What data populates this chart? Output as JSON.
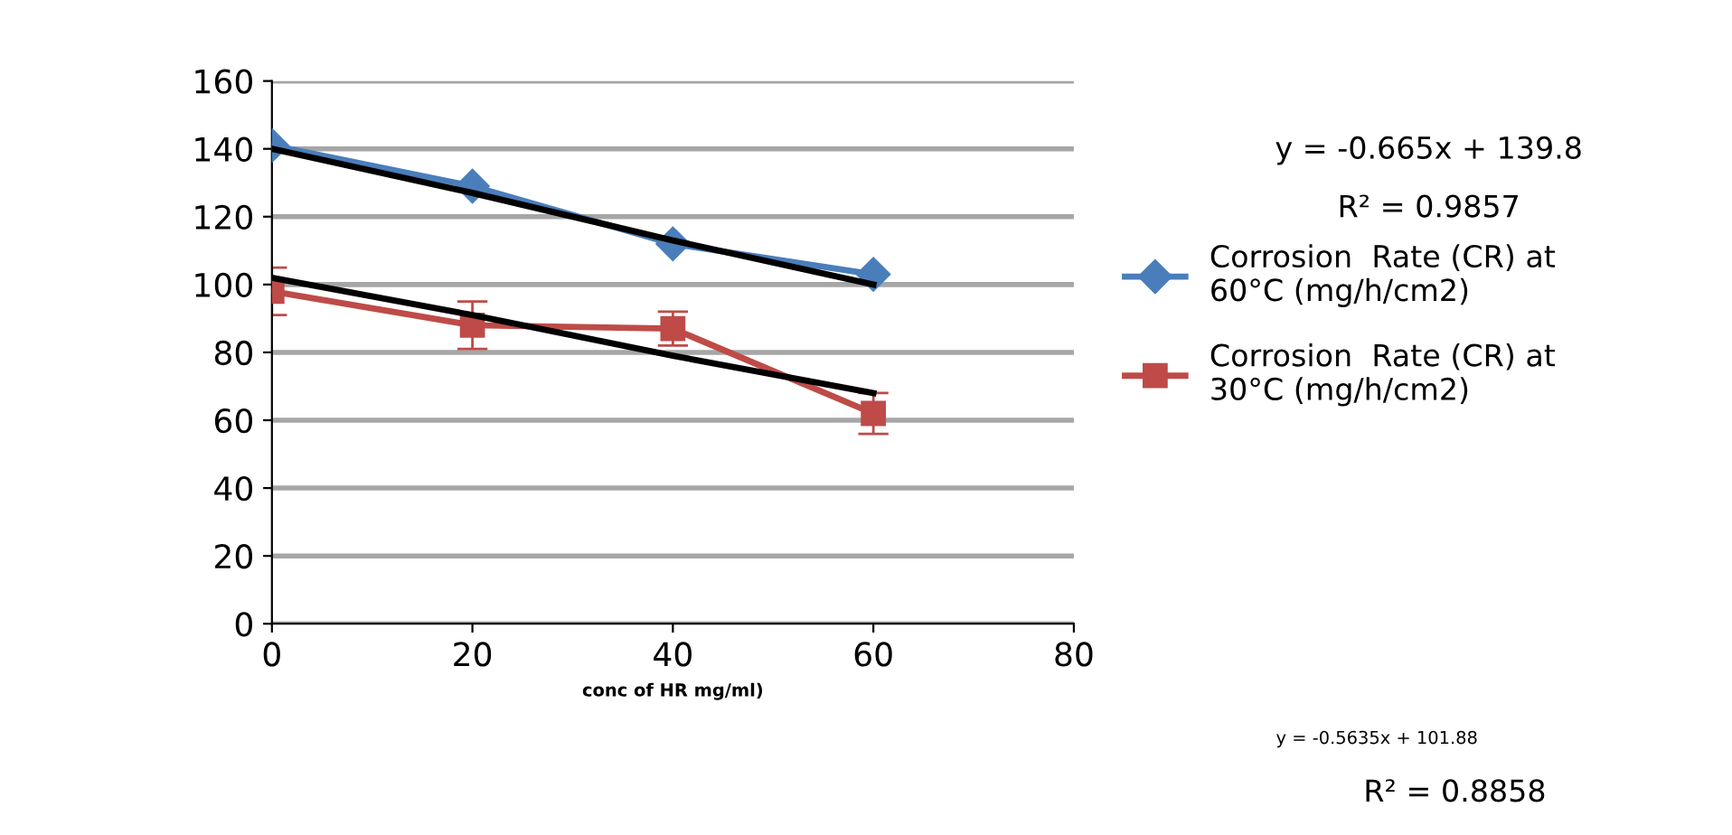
{
  "chart_data": {
    "type": "line",
    "xlabel": "conc of HR mg/ml)",
    "x": [
      0,
      20,
      40,
      60
    ],
    "series": [
      {
        "name": "Corrosion  Rate (CR) at\n60°C (mg/h/cm2)",
        "color": "#4a7ebb",
        "marker": "diamond",
        "values": [
          141,
          129,
          112,
          103
        ]
      },
      {
        "name": "Corrosion  Rate (CR) at\n30°C (mg/h/cm2)",
        "color": "#be4b48",
        "marker": "square",
        "values": [
          98,
          88,
          87,
          62
        ],
        "errors": [
          7,
          7,
          5,
          6
        ]
      },
      {
        "type": "line",
        "color": "#000000",
        "marker": "none",
        "values": [
          140,
          127,
          113,
          100
        ]
      },
      {
        "type": "line",
        "color": "#000000",
        "marker": "none",
        "values": [
          102,
          91,
          79,
          68
        ]
      }
    ],
    "xlim": [
      0,
      80
    ],
    "xticks": [
      0,
      20,
      40,
      60,
      80
    ],
    "ylim": [
      0,
      160
    ],
    "yticks": [
      0,
      20,
      40,
      60,
      80,
      100,
      120,
      140,
      160
    ],
    "grid": "y",
    "legend": "right",
    "annotations": [
      "y = -0.665x + 139.8",
      "R² = 0.9857",
      "y = -0.5635x + 101.88",
      "R² = 0.8858"
    ]
  }
}
